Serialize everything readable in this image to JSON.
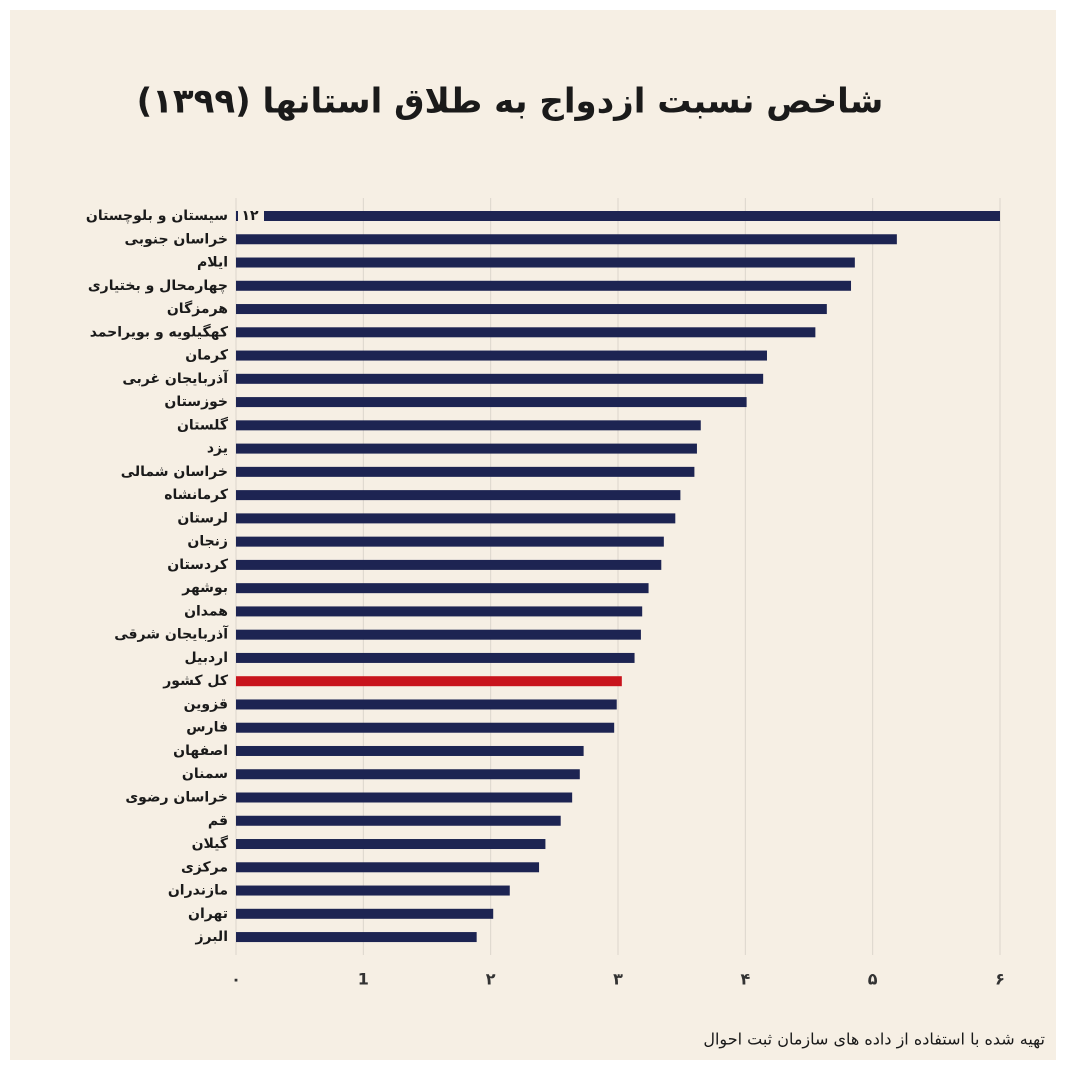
{
  "chart_data": {
    "type": "hbar",
    "title": "شاخص نسبت ازدواج به طلاق استانها (۱۳۹۹)",
    "footnote": "تهیه شده با استفاده از داده های سازمان ثبت احوال",
    "categories": [
      "سیستان و بلوچستان",
      "خراسان جنوبی",
      "ایلام",
      "چهارمحال و بختیاری",
      "هرمزگان",
      "کهگیلویه و بویراحمد",
      "کرمان",
      "آذربایجان غربی",
      "خوزستان",
      "گلستان",
      "یزد",
      "خراسان شمالی",
      "کرمانشاه",
      "لرستان",
      "زنجان",
      "کردستان",
      "بوشهر",
      "همدان",
      "آذربایجان شرقی",
      "اردبیل",
      "کل کشور",
      "قزوین",
      "فارس",
      "اصفهان",
      "سمنان",
      "خراسان رضوی",
      "قم",
      "گیلان",
      "مرکزی",
      "مازندران",
      "تهران",
      "البرز"
    ],
    "values": [
      12,
      5.19,
      4.86,
      4.83,
      4.64,
      4.55,
      4.17,
      4.14,
      4.01,
      3.65,
      3.62,
      3.6,
      3.49,
      3.45,
      3.36,
      3.34,
      3.24,
      3.19,
      3.18,
      3.13,
      3.03,
      2.99,
      2.97,
      2.73,
      2.7,
      2.64,
      2.55,
      2.43,
      2.38,
      2.15,
      2.02,
      1.89
    ],
    "value_labels": [
      "١٢",
      null,
      null,
      null,
      null,
      null,
      null,
      null,
      null,
      null,
      null,
      null,
      null,
      null,
      null,
      null,
      null,
      null,
      null,
      null,
      null,
      null,
      null,
      null,
      null,
      null,
      null,
      null,
      null,
      null,
      null,
      null
    ],
    "bar_colors": [
      "#1d2452",
      "#1d2452",
      "#1d2452",
      "#1d2452",
      "#1d2452",
      "#1d2452",
      "#1d2452",
      "#1d2452",
      "#1d2452",
      "#1d2452",
      "#1d2452",
      "#1d2452",
      "#1d2452",
      "#1d2452",
      "#1d2452",
      "#1d2452",
      "#1d2452",
      "#1d2452",
      "#1d2452",
      "#1d2452",
      "#c8141c",
      "#1d2452",
      "#1d2452",
      "#1d2452",
      "#1d2452",
      "#1d2452",
      "#1d2452",
      "#1d2452",
      "#1d2452",
      "#1d2452",
      "#1d2452",
      "#1d2452"
    ],
    "xlim": [
      0,
      6
    ],
    "xticks": [
      {
        "value": 0,
        "label": "۰"
      },
      1,
      {
        "value": 2,
        "label": "۲"
      },
      {
        "value": 3,
        "label": "۳"
      },
      {
        "value": 4,
        "label": "۴"
      },
      {
        "value": 5,
        "label": "۵"
      },
      {
        "value": 6,
        "label": "۶"
      }
    ],
    "grid": true
  }
}
